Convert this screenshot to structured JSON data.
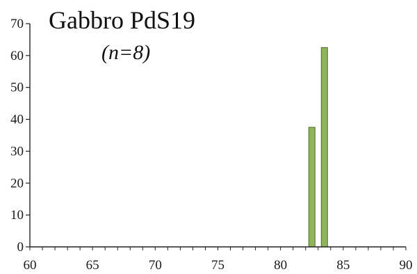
{
  "chart_data": {
    "type": "bar",
    "title": "Gabbro PdS19",
    "subtitle": "(n=8)",
    "xlabel": "",
    "ylabel": "",
    "xlim": [
      60,
      90
    ],
    "ylim": [
      0,
      70
    ],
    "x_ticks": [
      60,
      65,
      70,
      75,
      80,
      85,
      90
    ],
    "y_ticks": [
      0,
      10,
      20,
      30,
      40,
      50,
      60,
      70
    ],
    "bin_width": 1,
    "x": [
      82.5,
      83.5
    ],
    "values": [
      37.5,
      62.5
    ],
    "grid": false,
    "legend": "none",
    "bar_color": "#8fb35a",
    "bar_edge_color": "#4f6b2a"
  }
}
